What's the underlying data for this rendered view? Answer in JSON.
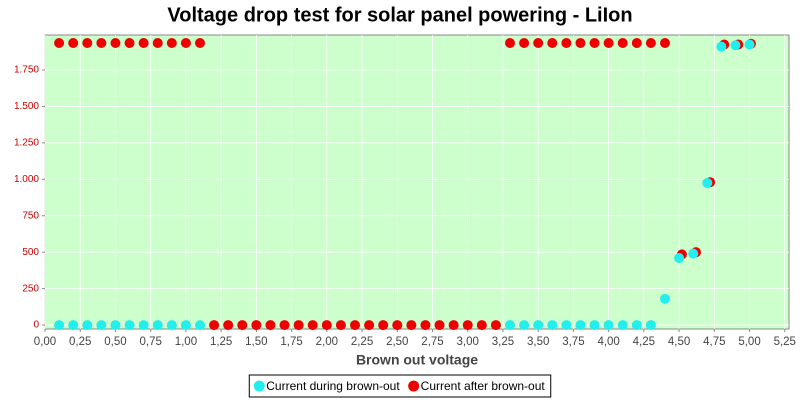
{
  "chart_data": {
    "type": "scatter",
    "title": "Voltage drop test for solar panel powering -  LiIon",
    "x_label": "Brown out voltage",
    "xlim": [
      0,
      5.28
    ],
    "ylim": [
      -27,
      1990
    ],
    "xticks": [
      {
        "value": 0,
        "label": "0,00"
      },
      {
        "value": 0.25,
        "label": "0,25"
      },
      {
        "value": 0.5,
        "label": "0,50"
      },
      {
        "value": 0.75,
        "label": "0,75"
      },
      {
        "value": 1,
        "label": "1,00"
      },
      {
        "value": 1.25,
        "label": "1,25"
      },
      {
        "value": 1.5,
        "label": "1,50"
      },
      {
        "value": 1.75,
        "label": "1,75"
      },
      {
        "value": 2,
        "label": "2,00"
      },
      {
        "value": 2.25,
        "label": "2,25"
      },
      {
        "value": 2.5,
        "label": "2,50"
      },
      {
        "value": 2.75,
        "label": "2,75"
      },
      {
        "value": 3,
        "label": "3,00"
      },
      {
        "value": 3.25,
        "label": "3,25"
      },
      {
        "value": 3.5,
        "label": "3,50"
      },
      {
        "value": 3.75,
        "label": "3,75"
      },
      {
        "value": 4,
        "label": "4,00"
      },
      {
        "value": 4.25,
        "label": "4,25"
      },
      {
        "value": 4.5,
        "label": "4,50"
      },
      {
        "value": 4.75,
        "label": "4,75"
      },
      {
        "value": 5,
        "label": "5,00"
      },
      {
        "value": 5.25,
        "label": "5,25"
      }
    ],
    "yticks": [
      0,
      250,
      500,
      750,
      {
        "value": 1000,
        "label": "1.000"
      },
      {
        "value": 1250,
        "label": "1.250"
      },
      {
        "value": 1500,
        "label": "1.500"
      },
      {
        "value": 1750,
        "label": "1.750"
      }
    ],
    "grid": true,
    "legend": "bottom",
    "series": [
      {
        "name": "Current during brown-out",
        "color": "#22eeee",
        "x": [
          0.1,
          0.2,
          0.3,
          0.4,
          0.5,
          0.6,
          0.7,
          0.8,
          0.9,
          1.0,
          1.1,
          3.3,
          3.4,
          3.5,
          3.6,
          3.7,
          3.8,
          3.9,
          4.0,
          4.1,
          4.2,
          4.3,
          4.4,
          4.5,
          4.6,
          4.7,
          4.8,
          4.9,
          5.0
        ],
        "values": [
          0,
          0,
          0,
          0,
          0,
          0,
          0,
          0,
          0,
          0,
          0,
          0,
          0,
          0,
          0,
          0,
          0,
          0,
          0,
          0,
          0,
          0,
          180,
          460,
          490,
          975,
          1910,
          1920,
          1925
        ]
      },
      {
        "name": "Current after brown-out",
        "color": "#ee0000",
        "x": [
          0.1,
          0.2,
          0.3,
          0.4,
          0.5,
          0.6,
          0.7,
          0.8,
          0.9,
          1.0,
          1.1,
          1.2,
          1.3,
          1.4,
          1.5,
          1.6,
          1.7,
          1.8,
          1.9,
          2.0,
          2.1,
          2.2,
          2.3,
          2.4,
          2.5,
          2.6,
          2.7,
          2.8,
          2.9,
          3.0,
          3.1,
          3.2,
          3.3,
          3.4,
          3.5,
          3.6,
          3.7,
          3.8,
          3.9,
          4.0,
          4.1,
          4.2,
          4.3,
          4.4,
          4.52,
          4.62,
          4.72,
          4.82,
          4.92,
          5.01
        ],
        "values": [
          1935,
          1935,
          1935,
          1935,
          1935,
          1935,
          1935,
          1935,
          1935,
          1935,
          1935,
          0,
          0,
          0,
          0,
          0,
          0,
          0,
          0,
          0,
          0,
          0,
          0,
          0,
          0,
          0,
          0,
          0,
          0,
          0,
          0,
          0,
          1935,
          1935,
          1935,
          1935,
          1935,
          1935,
          1935,
          1935,
          1935,
          1935,
          1935,
          1935,
          485,
          500,
          980,
          1925,
          1925,
          1930
        ]
      }
    ]
  }
}
